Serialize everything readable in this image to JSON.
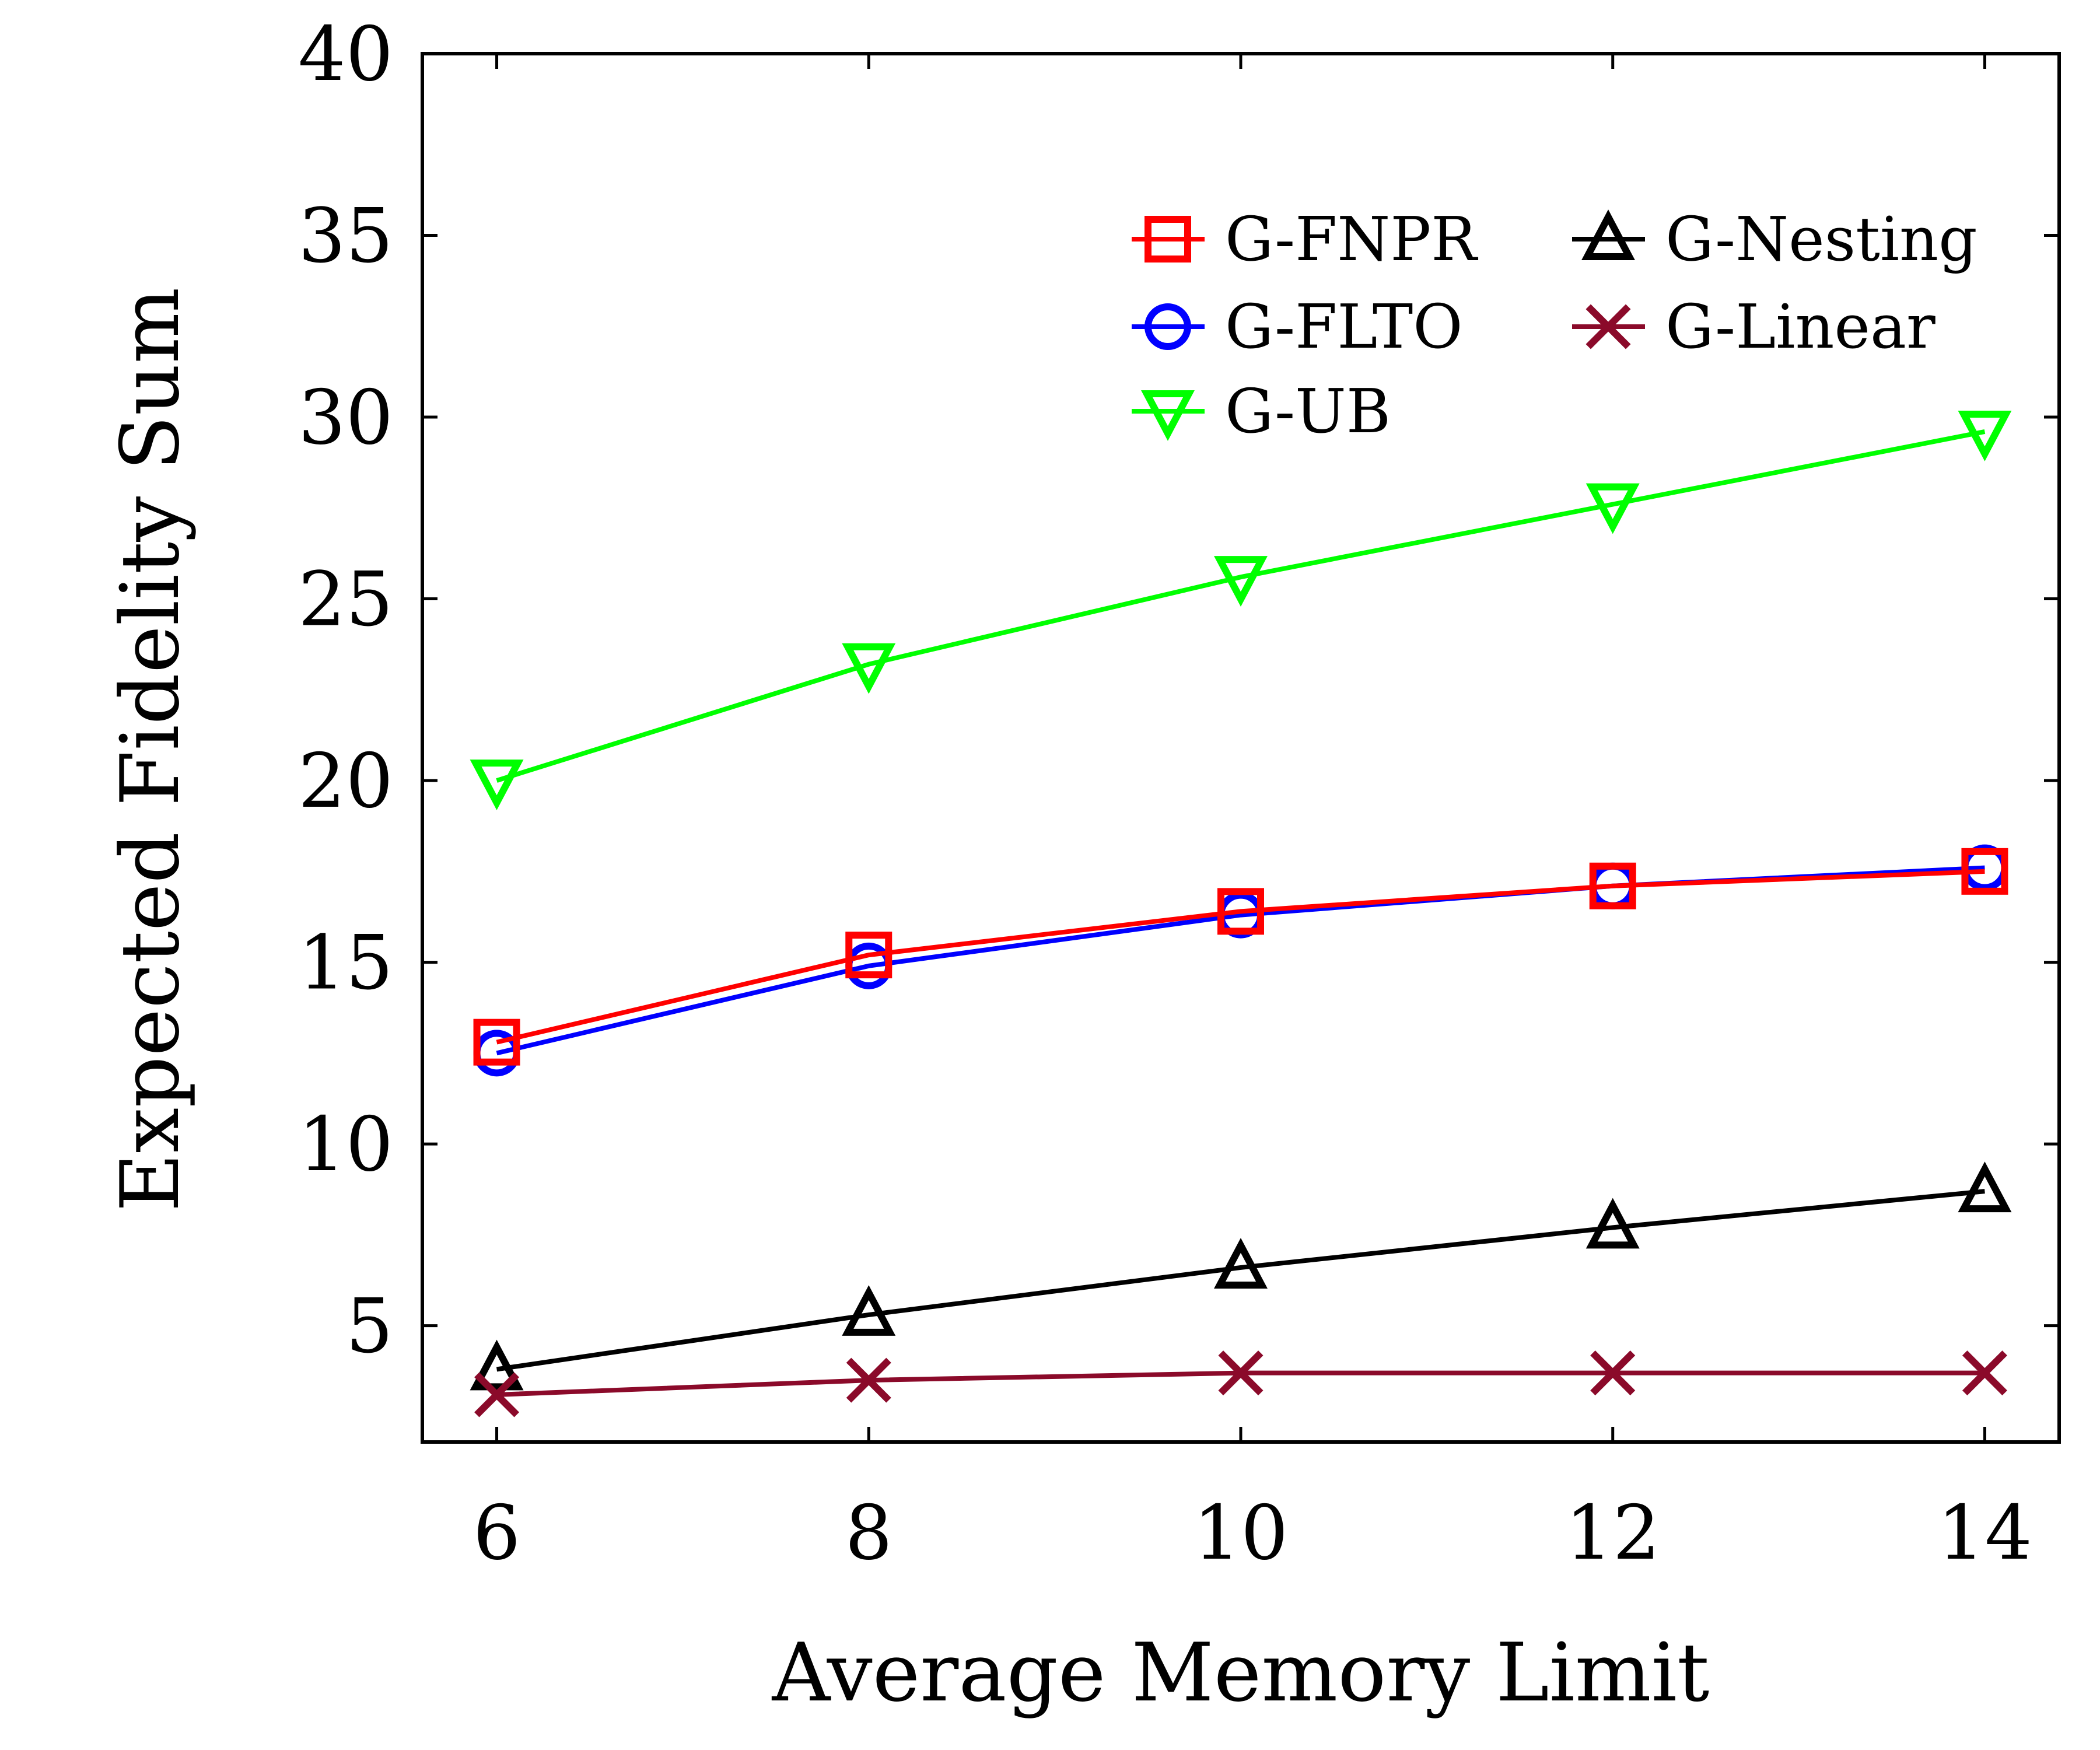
{
  "chart_data": {
    "type": "line",
    "title": "",
    "xlabel": "Average Memory Limit",
    "ylabel": "Expected Fidelity Sum",
    "x": [
      6,
      8,
      10,
      12,
      14
    ],
    "xlim": [
      5.6,
      14.4
    ],
    "ylim": [
      1.8,
      40
    ],
    "xticks": [
      6,
      8,
      10,
      12,
      14
    ],
    "yticks": [
      5,
      10,
      15,
      20,
      25,
      30,
      35,
      40
    ],
    "grid": false,
    "legend_position": "top-right",
    "series": [
      {
        "name": "G-FNPR",
        "marker": "square",
        "color": "#ff0000",
        "values": [
          12.8,
          15.2,
          16.4,
          17.1,
          17.5
        ]
      },
      {
        "name": "G-FLTO",
        "marker": "circle",
        "color": "#0000ff",
        "values": [
          12.5,
          14.9,
          16.3,
          17.1,
          17.6
        ]
      },
      {
        "name": "G-UB",
        "marker": "triangle-down",
        "color": "#00ff00",
        "values": [
          20.0,
          23.2,
          25.6,
          27.6,
          29.6
        ]
      },
      {
        "name": "G-Nesting",
        "marker": "triangle-up",
        "color": "#000000",
        "values": [
          3.8,
          5.3,
          6.6,
          7.7,
          8.7
        ]
      },
      {
        "name": "G-Linear",
        "marker": "x",
        "color": "#8b0a2a",
        "values": [
          3.1,
          3.5,
          3.7,
          3.7,
          3.7
        ]
      }
    ]
  }
}
